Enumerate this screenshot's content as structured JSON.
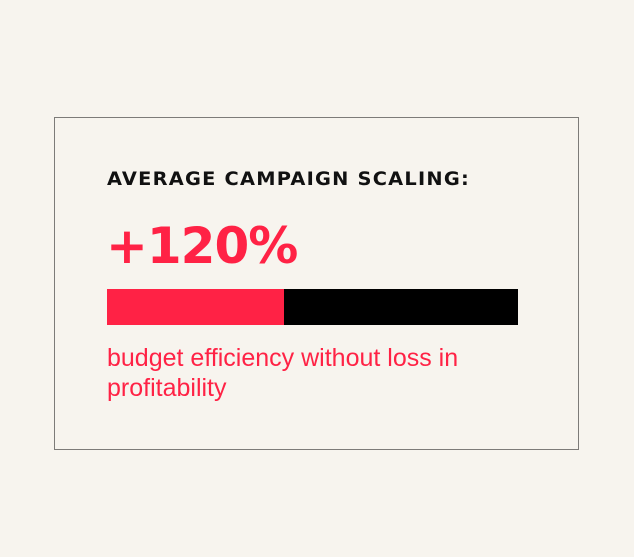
{
  "card": {
    "title": "AVERAGE CAMPAIGN SCALING:",
    "value": "+120%",
    "progress_fraction": 0.43,
    "description": "budget efficiency without loss in profitability"
  },
  "colors": {
    "accent": "#ff2245",
    "bar_track": "#000000",
    "background": "#f7f4ee",
    "border": "#7d7b78"
  }
}
